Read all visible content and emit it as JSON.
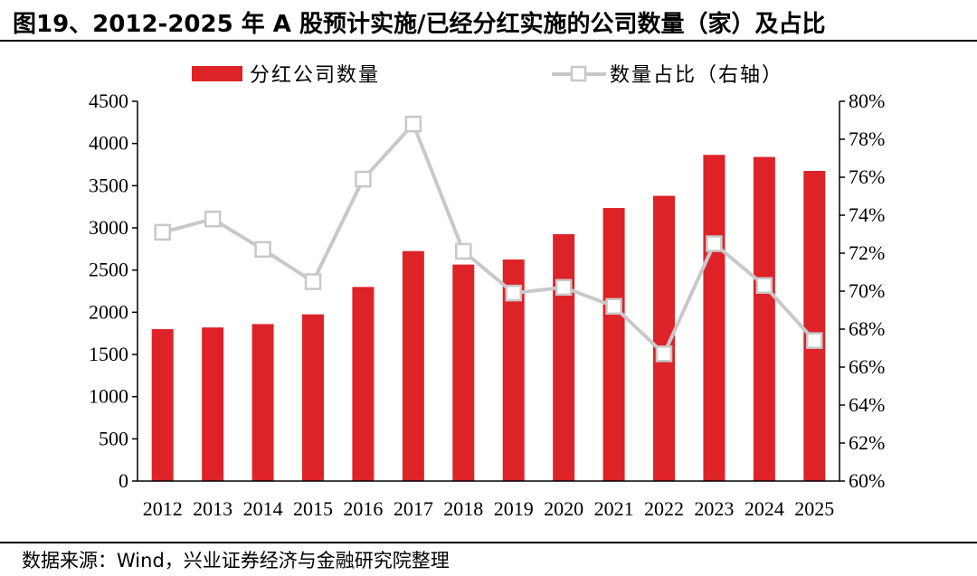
{
  "title": "图19、2012-2025 年 A 股预计实施/已经分红实施的公司数量（家）及占比",
  "source": "数据来源：Wind，兴业证券经济与金融研究院整理",
  "colors": {
    "bar": "#dd2327",
    "line": "#c8c8c8",
    "marker_fill": "#ffffff",
    "axis": "#000000"
  },
  "chart_data": {
    "type": "bar",
    "categories": [
      "2012",
      "2013",
      "2014",
      "2015",
      "2016",
      "2017",
      "2018",
      "2019",
      "2020",
      "2021",
      "2022",
      "2023",
      "2024",
      "2025"
    ],
    "series": [
      {
        "name": "分红公司数量",
        "type": "bar",
        "axis": "left",
        "values": [
          1800,
          1820,
          1860,
          1975,
          2300,
          2725,
          2565,
          2625,
          2925,
          3235,
          3380,
          3865,
          3840,
          3675
        ]
      },
      {
        "name": "数量占比（右轴）",
        "type": "line",
        "axis": "right",
        "marker": "square",
        "values": [
          73.1,
          73.8,
          72.2,
          70.5,
          75.9,
          78.8,
          72.1,
          69.9,
          70.2,
          69.2,
          66.7,
          72.5,
          70.3,
          67.4
        ]
      }
    ],
    "y_left": {
      "lim": [
        0,
        4500
      ],
      "ticks": [
        "0",
        "500",
        "1000",
        "1500",
        "2000",
        "2500",
        "3000",
        "3500",
        "4000",
        "4500"
      ]
    },
    "y_right": {
      "lim": [
        60,
        80
      ],
      "ticks": [
        "60%",
        "62%",
        "64%",
        "66%",
        "68%",
        "70%",
        "72%",
        "74%",
        "76%",
        "78%",
        "80%"
      ]
    },
    "legend_position": "top",
    "grid": false
  }
}
